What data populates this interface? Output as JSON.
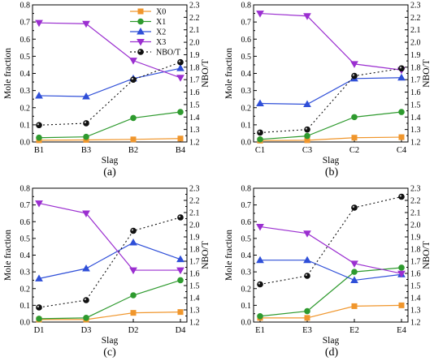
{
  "chart_data": [
    {
      "type": "line",
      "panel_label": "(a)",
      "categories": [
        "B1",
        "B3",
        "B2",
        "B4"
      ],
      "xlabel": "Slag",
      "ylabel": "Mole fraction",
      "y2label": "NBO/T",
      "ylim": [
        0,
        0.8
      ],
      "y2lim": [
        1.2,
        2.3
      ],
      "yticks": [
        "0.0",
        "0.1",
        "0.2",
        "0.3",
        "0.4",
        "0.5",
        "0.6",
        "0.7",
        "0.8"
      ],
      "y2ticks": [
        "1.2",
        "1.3",
        "1.4",
        "1.5",
        "1.6",
        "1.7",
        "1.8",
        "1.9",
        "2.0",
        "2.1",
        "2.2",
        "2.3"
      ],
      "legend_position": "top-right",
      "series": [
        {
          "name": "X0",
          "axis": "left",
          "values": [
            0.01,
            0.012,
            0.015,
            0.02
          ]
        },
        {
          "name": "X1",
          "axis": "left",
          "values": [
            0.025,
            0.03,
            0.14,
            0.175
          ]
        },
        {
          "name": "X2",
          "axis": "left",
          "values": [
            0.27,
            0.265,
            0.37,
            0.43
          ]
        },
        {
          "name": "X3",
          "axis": "left",
          "values": [
            0.695,
            0.69,
            0.475,
            0.375
          ]
        },
        {
          "name": "NBO/T",
          "axis": "right",
          "values": [
            1.335,
            1.35,
            1.7,
            1.84
          ]
        }
      ]
    },
    {
      "type": "line",
      "panel_label": "(b)",
      "categories": [
        "C1",
        "C3",
        "C2",
        "C4"
      ],
      "xlabel": "Slag",
      "ylabel": "Mole fraction",
      "y2label": "NBO/T",
      "ylim": [
        0,
        0.8
      ],
      "y2lim": [
        1.2,
        2.3
      ],
      "yticks": [
        "0.0",
        "0.1",
        "0.2",
        "0.3",
        "0.4",
        "0.5",
        "0.6",
        "0.7",
        "0.8"
      ],
      "y2ticks": [
        "1.2",
        "1.3",
        "1.4",
        "1.5",
        "1.6",
        "1.7",
        "1.8",
        "1.9",
        "2.0",
        "2.1",
        "2.2",
        "2.3"
      ],
      "series": [
        {
          "name": "X0",
          "axis": "left",
          "values": [
            0.008,
            0.01,
            0.025,
            0.028
          ]
        },
        {
          "name": "X1",
          "axis": "left",
          "values": [
            0.015,
            0.035,
            0.145,
            0.175
          ]
        },
        {
          "name": "X2",
          "axis": "left",
          "values": [
            0.225,
            0.22,
            0.37,
            0.375
          ]
        },
        {
          "name": "X3",
          "axis": "left",
          "values": [
            0.75,
            0.735,
            0.455,
            0.42
          ]
        },
        {
          "name": "NBO/T",
          "axis": "right",
          "values": [
            1.275,
            1.3,
            1.73,
            1.79
          ]
        }
      ]
    },
    {
      "type": "line",
      "panel_label": "(c)",
      "categories": [
        "D1",
        "D3",
        "D2",
        "D4"
      ],
      "xlabel": "Slag",
      "ylabel": "Mole fraction",
      "y2label": "NBO/T",
      "ylim": [
        0,
        0.8
      ],
      "y2lim": [
        1.2,
        2.3
      ],
      "yticks": [
        "0.0",
        "0.1",
        "0.2",
        "0.3",
        "0.4",
        "0.5",
        "0.6",
        "0.7",
        "0.8"
      ],
      "y2ticks": [
        "1.2",
        "1.3",
        "1.4",
        "1.5",
        "1.6",
        "1.7",
        "1.8",
        "1.9",
        "2.0",
        "2.1",
        "2.2",
        "2.3"
      ],
      "series": [
        {
          "name": "X0",
          "axis": "left",
          "values": [
            0.015,
            0.015,
            0.055,
            0.06
          ]
        },
        {
          "name": "X1",
          "axis": "left",
          "values": [
            0.02,
            0.025,
            0.16,
            0.25
          ]
        },
        {
          "name": "X2",
          "axis": "left",
          "values": [
            0.26,
            0.32,
            0.475,
            0.375
          ]
        },
        {
          "name": "X3",
          "axis": "left",
          "values": [
            0.71,
            0.65,
            0.31,
            0.31
          ]
        },
        {
          "name": "NBO/T",
          "axis": "right",
          "values": [
            1.32,
            1.38,
            1.95,
            2.06
          ]
        }
      ]
    },
    {
      "type": "line",
      "panel_label": "(d)",
      "categories": [
        "E1",
        "E3",
        "E2",
        "E4"
      ],
      "xlabel": "Slag",
      "ylabel": "Mole fraction",
      "y2label": "NBO/T",
      "ylim": [
        0,
        0.8
      ],
      "y2lim": [
        1.2,
        2.3
      ],
      "yticks": [
        "0.0",
        "0.1",
        "0.2",
        "0.3",
        "0.4",
        "0.5",
        "0.6",
        "0.7",
        "0.8"
      ],
      "y2ticks": [
        "1.2",
        "1.3",
        "1.4",
        "1.5",
        "1.6",
        "1.7",
        "1.8",
        "1.9",
        "2.0",
        "2.1",
        "2.2",
        "2.3"
      ],
      "series": [
        {
          "name": "X0",
          "axis": "left",
          "values": [
            0.025,
            0.025,
            0.095,
            0.1
          ]
        },
        {
          "name": "X1",
          "axis": "left",
          "values": [
            0.035,
            0.065,
            0.3,
            0.325
          ]
        },
        {
          "name": "X2",
          "axis": "left",
          "values": [
            0.37,
            0.37,
            0.25,
            0.285
          ]
        },
        {
          "name": "X3",
          "axis": "left",
          "values": [
            0.57,
            0.53,
            0.35,
            0.29
          ]
        },
        {
          "name": "NBO/T",
          "axis": "right",
          "values": [
            1.51,
            1.58,
            2.14,
            2.23
          ]
        }
      ]
    }
  ],
  "series_style": {
    "X0": {
      "color": "#f0962c",
      "marker": "square",
      "dash": false
    },
    "X1": {
      "color": "#2e9a2e",
      "marker": "circle",
      "dash": false
    },
    "X2": {
      "color": "#2f4fd8",
      "marker": "triangle-up",
      "dash": false
    },
    "X3": {
      "color": "#9b2fd0",
      "marker": "triangle-down",
      "dash": false
    },
    "NBO/T": {
      "color": "#111111",
      "marker": "sphere",
      "dash": true
    }
  }
}
